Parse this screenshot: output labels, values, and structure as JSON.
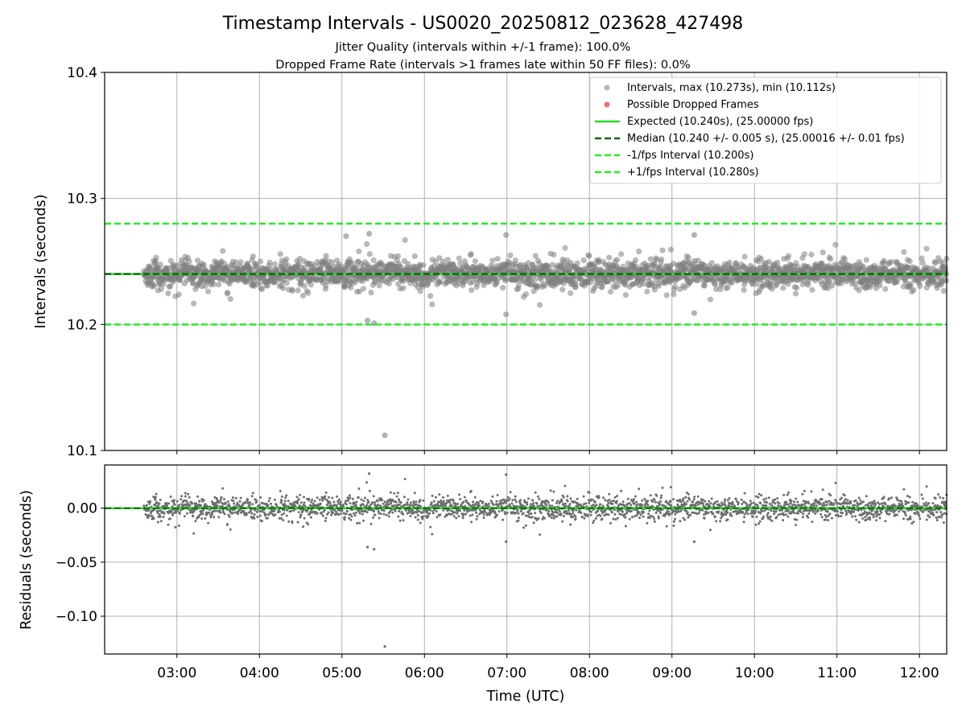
{
  "chart_data": {
    "type": "scatter",
    "title": "Timestamp Intervals - US0020_20250812_023628_427498",
    "subtitle_lines": [
      "Jitter Quality (intervals within +/-1 frame): 100.0%",
      "Dropped Frame Rate (intervals >1 frames late within 50 FF files): 0.0%"
    ],
    "xlabel": "Time (UTC)",
    "x_ticks": [
      "03:00",
      "04:00",
      "05:00",
      "06:00",
      "07:00",
      "08:00",
      "09:00",
      "10:00",
      "11:00",
      "12:00"
    ],
    "x_tick_hours": [
      3,
      4,
      5,
      6,
      7,
      8,
      9,
      10,
      11,
      12
    ],
    "xlim_hours": [
      2.124,
      12.33
    ],
    "data_start_hour": 2.6,
    "data_end_hour": 12.33,
    "grid": true,
    "legend_position": "top-right",
    "top_panel": {
      "ylabel": "Intervals (seconds)",
      "ylim": [
        10.1,
        10.4
      ],
      "y_ticks": [
        "10.1",
        "10.2",
        "10.3",
        "10.4"
      ],
      "y_tick_values": [
        10.1,
        10.2,
        10.3,
        10.4
      ],
      "series": [
        {
          "name": "Intervals, max (10.273s), min (10.112s)",
          "kind": "scatter",
          "color": "#808080",
          "max": 10.273,
          "min": 10.112,
          "center": 10.24,
          "spread": 0.005
        },
        {
          "name": "Possible Dropped Frames",
          "kind": "scatter",
          "color": "#f07070",
          "count": 0
        },
        {
          "name": "Expected (10.240s), (25.00000 fps)",
          "kind": "hline",
          "value": 10.24,
          "color": "#22dd22",
          "style": "solid"
        },
        {
          "name": "Median (10.240 +/- 0.005 s), (25.00016 +/- 0.01 fps)",
          "kind": "hline",
          "value": 10.24,
          "color": "#116611",
          "style": "dashed"
        },
        {
          "name": "-1/fps Interval (10.200s)",
          "kind": "hline",
          "value": 10.2,
          "color": "#22ee22",
          "style": "dashed"
        },
        {
          "name": "+1/fps Interval (10.280s)",
          "kind": "hline",
          "value": 10.28,
          "color": "#22ee22",
          "style": "dashed"
        }
      ],
      "outliers": [
        {
          "hour": 5.52,
          "y": 10.112
        },
        {
          "hour": 5.31,
          "y": 10.203
        },
        {
          "hour": 5.39,
          "y": 10.201
        },
        {
          "hour": 5.33,
          "y": 10.272
        },
        {
          "hour": 6.99,
          "y": 10.271
        },
        {
          "hour": 5.05,
          "y": 10.27
        },
        {
          "hour": 6.99,
          "y": 10.208
        },
        {
          "hour": 9.27,
          "y": 10.271
        },
        {
          "hour": 9.27,
          "y": 10.209
        }
      ]
    },
    "bottom_panel": {
      "ylabel": "Residuals (seconds)",
      "ylim": [
        -0.135,
        0.04
      ],
      "y_ticks": [
        "0.00",
        "−0.05",
        "−0.10"
      ],
      "y_tick_values": [
        0.0,
        -0.05,
        -0.1
      ],
      "outliers": [
        {
          "hour": 5.52,
          "y": -0.128
        },
        {
          "hour": 5.31,
          "y": -0.036
        },
        {
          "hour": 5.39,
          "y": -0.038
        },
        {
          "hour": 5.33,
          "y": 0.032
        },
        {
          "hour": 6.99,
          "y": 0.031
        },
        {
          "hour": 6.99,
          "y": -0.031
        },
        {
          "hour": 9.27,
          "y": -0.031
        }
      ]
    }
  }
}
